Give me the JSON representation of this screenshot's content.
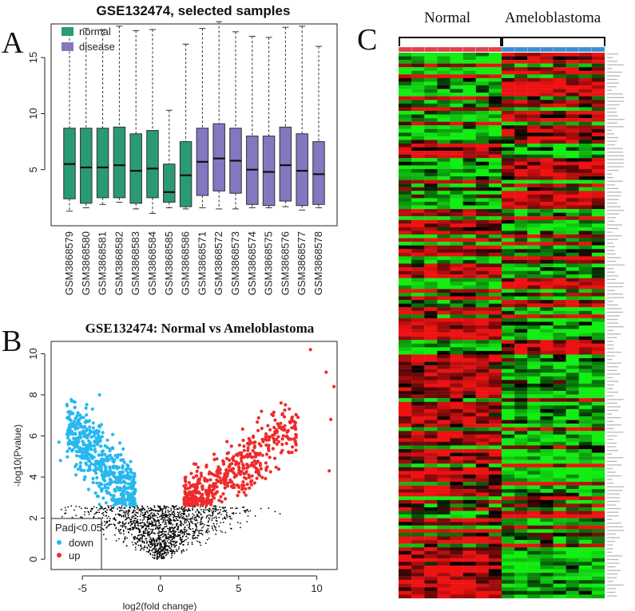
{
  "panels": {
    "a": {
      "letter": "A"
    },
    "b": {
      "letter": "B"
    },
    "c": {
      "letter": "C"
    }
  },
  "colors": {
    "normal": "#2a9a72",
    "disease": "#8477c0",
    "down": "#26b8ee",
    "up": "#ee2b2b",
    "ns": "#000000",
    "heat_low": "#12ee12",
    "heat_mid": "#000000",
    "heat_high": "#ee1212",
    "bar_normal": "#e2404a",
    "bar_tumor": "#3a8fd4"
  },
  "chart_data": [
    {
      "type": "boxplot",
      "title": "GSE132474, selected samples",
      "xlabel": "",
      "ylabel": "",
      "ylim": [
        0,
        18
      ],
      "yticks": [
        5,
        10,
        15
      ],
      "legend": {
        "position": "top-left",
        "entries": [
          "normal",
          "disease"
        ]
      },
      "groups": [
        "normal",
        "normal",
        "normal",
        "normal",
        "normal",
        "normal",
        "normal",
        "normal",
        "disease",
        "disease",
        "disease",
        "disease",
        "disease",
        "disease",
        "disease",
        "disease"
      ],
      "samples": [
        {
          "name": "GSM3868579",
          "group": "normal",
          "min": 1.3,
          "q1": 2.4,
          "median": 5.5,
          "q3": 8.7,
          "max": 17.5
        },
        {
          "name": "GSM3868580",
          "group": "normal",
          "min": 1.6,
          "q1": 2.0,
          "median": 5.2,
          "q3": 8.7,
          "max": 17.6
        },
        {
          "name": "GSM3868581",
          "group": "normal",
          "min": 1.9,
          "q1": 2.5,
          "median": 5.2,
          "q3": 8.7,
          "max": 17.5
        },
        {
          "name": "GSM3868582",
          "group": "normal",
          "min": 2.1,
          "q1": 2.5,
          "median": 5.4,
          "q3": 8.8,
          "max": 17.8
        },
        {
          "name": "GSM3868583",
          "group": "normal",
          "min": 1.5,
          "q1": 2.0,
          "median": 4.9,
          "q3": 8.2,
          "max": 17.4
        },
        {
          "name": "GSM3868584",
          "group": "normal",
          "min": 1.1,
          "q1": 2.5,
          "median": 5.1,
          "q3": 8.5,
          "max": 17.5
        },
        {
          "name": "GSM3868585",
          "group": "normal",
          "min": 1.6,
          "q1": 2.1,
          "median": 3.0,
          "q3": 5.5,
          "max": 10.3
        },
        {
          "name": "GSM3868586",
          "group": "normal",
          "min": 1.5,
          "q1": 1.7,
          "median": 4.5,
          "q3": 7.5,
          "max": 16.2
        },
        {
          "name": "GSM3868571",
          "group": "disease",
          "min": 1.6,
          "q1": 2.7,
          "median": 5.7,
          "q3": 8.7,
          "max": 17.6
        },
        {
          "name": "GSM3868572",
          "group": "disease",
          "min": 1.5,
          "q1": 3.1,
          "median": 6.0,
          "q3": 9.1,
          "max": 18.2
        },
        {
          "name": "GSM3868573",
          "group": "disease",
          "min": 1.5,
          "q1": 2.9,
          "median": 5.8,
          "q3": 8.7,
          "max": 17.3
        },
        {
          "name": "GSM3868574",
          "group": "disease",
          "min": 1.6,
          "q1": 1.9,
          "median": 5.0,
          "q3": 8.0,
          "max": 16.9
        },
        {
          "name": "GSM3868575",
          "group": "disease",
          "min": 1.6,
          "q1": 1.8,
          "median": 4.8,
          "q3": 8.0,
          "max": 16.8
        },
        {
          "name": "GSM3868576",
          "group": "disease",
          "min": 1.7,
          "q1": 2.2,
          "median": 5.4,
          "q3": 8.8,
          "max": 17.7
        },
        {
          "name": "GSM3868577",
          "group": "disease",
          "min": 1.4,
          "q1": 1.8,
          "median": 4.9,
          "q3": 8.2,
          "max": 17.8
        },
        {
          "name": "GSM3868578",
          "group": "disease",
          "min": 1.6,
          "q1": 1.9,
          "median": 4.6,
          "q3": 7.5,
          "max": 16.0
        }
      ]
    },
    {
      "type": "scatter",
      "subtype": "volcano",
      "title": "GSE132474: Normal vs Ameloblastoma",
      "xlabel": "log2(fold change)",
      "ylabel": "-log10(Pvalue)",
      "xlim": [
        -7,
        11.3
      ],
      "ylim": [
        -0.5,
        10.6
      ],
      "xticks": [
        -5,
        0,
        5,
        10
      ],
      "yticks": [
        0,
        2,
        4,
        6,
        8,
        10
      ],
      "significance_threshold": 2.6,
      "fold_change_threshold": 1,
      "legend": {
        "position": "bottom-left",
        "title": "Padj<0.05",
        "entries": [
          "down",
          "up"
        ]
      },
      "labeled_points": [
        {
          "x": 9.6,
          "y": 10.2,
          "group": "up"
        },
        {
          "x": 10.6,
          "y": 9.1,
          "group": "up"
        },
        {
          "x": 11.1,
          "y": 8.4,
          "group": "up"
        },
        {
          "x": 10.9,
          "y": 6.8,
          "group": "up"
        },
        {
          "x": 10.8,
          "y": 4.3,
          "group": "up"
        },
        {
          "x": 8.8,
          "y": 6.9,
          "group": "up"
        },
        {
          "x": -3.9,
          "y": 8.0,
          "group": "down"
        },
        {
          "x": -6.5,
          "y": 5.7,
          "group": "down"
        },
        {
          "x": -6.4,
          "y": 4.8,
          "group": "down"
        }
      ]
    },
    {
      "type": "heatmap",
      "groups": [
        "Normal",
        "Ameloblastoma"
      ],
      "columns_per_group": 8,
      "n_rows": 150,
      "color_scale": [
        "low",
        "mid",
        "high"
      ]
    }
  ]
}
